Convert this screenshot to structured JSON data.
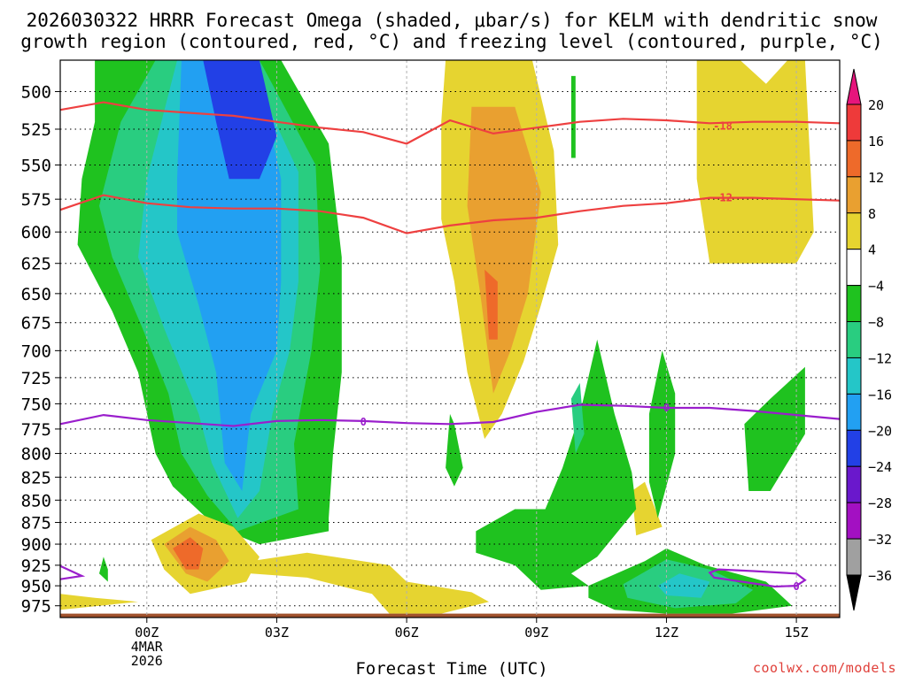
{
  "chart_data": {
    "type": "heatmap",
    "title_line1": "2026030322 HRRR Forecast Omega (shaded, μbar/s) for KELM with dendritic snow",
    "title_line2": "growth region (contoured, red, °C) and freezing level (contoured, purple, °C)",
    "xlabel": "Forecast Time (UTC)",
    "ylabel": "",
    "y_axis": {
      "scale": "pressure (inverted, log-like)",
      "ylim": [
        990,
        480
      ],
      "ticks": [
        500,
        525,
        550,
        575,
        600,
        625,
        650,
        675,
        700,
        725,
        750,
        775,
        800,
        825,
        850,
        875,
        900,
        925,
        950,
        975
      ]
    },
    "x_axis": {
      "xlim": [
        -2,
        16
      ],
      "ticks": [
        {
          "hour": 0,
          "label": "00Z",
          "sub1": "4MAR",
          "sub2": "2026"
        },
        {
          "hour": 3,
          "label": "03Z",
          "sub1": "",
          "sub2": ""
        },
        {
          "hour": 6,
          "label": "06Z",
          "sub1": "",
          "sub2": ""
        },
        {
          "hour": 9,
          "label": "09Z",
          "sub1": "",
          "sub2": ""
        },
        {
          "hour": 12,
          "label": "12Z",
          "sub1": "",
          "sub2": ""
        },
        {
          "hour": 15,
          "label": "15Z",
          "sub1": "",
          "sub2": ""
        }
      ]
    },
    "grid": true,
    "colorbar": {
      "labels": [
        "20",
        "16",
        "12",
        "8",
        "4",
        "−4",
        "−8",
        "−12",
        "−16",
        "−20",
        "−24",
        "−28",
        "−32",
        "−36"
      ],
      "bins": [
        {
          "from": 16,
          "to": 20,
          "color": "#ee3a3a"
        },
        {
          "from": 12,
          "to": 16,
          "color": "#ee6a2a"
        },
        {
          "from": 8,
          "to": 12,
          "color": "#e9a030"
        },
        {
          "from": 4,
          "to": 8,
          "color": "#e6d430"
        },
        {
          "from": -4,
          "to": 4,
          "color": "#ffffff"
        },
        {
          "from": -8,
          "to": -4,
          "color": "#1fc21f"
        },
        {
          "from": -12,
          "to": -8,
          "color": "#29cd80"
        },
        {
          "from": -16,
          "to": -12,
          "color": "#24c6c8"
        },
        {
          "from": -20,
          "to": -16,
          "color": "#22a0f2"
        },
        {
          "from": -24,
          "to": -20,
          "color": "#2240e6"
        },
        {
          "from": -28,
          "to": -24,
          "color": "#6a18cc"
        },
        {
          "from": -32,
          "to": -28,
          "color": "#a310c2"
        },
        {
          "from": -36,
          "to": -32,
          "color": "#a0a0a0"
        }
      ],
      "top_arrow_color": "#e6157c",
      "bottom_arrow_color": "#000000"
    },
    "contours": [
      {
        "name": "-18",
        "label": "-18",
        "color": "#ee4040",
        "label_at": [
          13.3,
          523
        ],
        "points": [
          [
            -2,
            512
          ],
          [
            -1,
            507
          ],
          [
            0,
            512
          ],
          [
            1,
            514
          ],
          [
            2,
            516
          ],
          [
            3,
            520
          ],
          [
            4,
            524
          ],
          [
            5,
            527
          ],
          [
            6,
            535
          ],
          [
            7,
            519
          ],
          [
            8,
            528
          ],
          [
            9,
            524
          ],
          [
            10,
            520
          ],
          [
            11,
            518
          ],
          [
            12,
            519
          ],
          [
            13,
            521
          ],
          [
            14,
            520
          ],
          [
            15,
            520
          ],
          [
            16,
            521
          ]
        ]
      },
      {
        "name": "-12",
        "label": "-12",
        "color": "#ee4040",
        "label_at": [
          13.3,
          574
        ],
        "points": [
          [
            -2,
            583
          ],
          [
            -1,
            572
          ],
          [
            0,
            578
          ],
          [
            1,
            581
          ],
          [
            2,
            582
          ],
          [
            3,
            582
          ],
          [
            4,
            584
          ],
          [
            5,
            589
          ],
          [
            6,
            601
          ],
          [
            7,
            595
          ],
          [
            8,
            591
          ],
          [
            9,
            589
          ],
          [
            10,
            584
          ],
          [
            11,
            580
          ],
          [
            12,
            578
          ],
          [
            13,
            574
          ],
          [
            14,
            574
          ],
          [
            15,
            575
          ],
          [
            16,
            576
          ]
        ]
      },
      {
        "name": "0",
        "label": "0",
        "color": "#9a1ecc",
        "label_at": [
          5,
          768
        ],
        "points": [
          [
            -2,
            770
          ],
          [
            -1,
            761
          ],
          [
            0,
            766
          ],
          [
            1,
            769
          ],
          [
            2,
            772
          ],
          [
            3,
            767
          ],
          [
            4,
            766
          ],
          [
            5,
            767
          ],
          [
            6,
            769
          ],
          [
            7,
            770
          ],
          [
            8,
            768
          ],
          [
            9,
            758
          ],
          [
            10,
            751
          ],
          [
            11,
            752
          ],
          [
            12,
            754
          ],
          [
            13,
            754
          ],
          [
            14,
            757
          ],
          [
            15,
            761
          ],
          [
            16,
            765
          ]
        ]
      },
      {
        "name": "0-low",
        "label": "0",
        "color": "#9a1ecc",
        "label_at": [
          15,
          951
        ],
        "points": [
          [
            -2,
            926
          ],
          [
            -1.5,
            938
          ],
          [
            -2,
            942
          ]
        ]
      },
      {
        "name": "0-box",
        "label": "0",
        "color": "#9a1ecc",
        "label_at": [
          15,
          950
        ],
        "points": [
          [
            13,
            934
          ],
          [
            13.2,
            930
          ],
          [
            14,
            932
          ],
          [
            15,
            935
          ],
          [
            15.2,
            943
          ],
          [
            15,
            950
          ],
          [
            14.5,
            951
          ],
          [
            13.1,
            940
          ]
        ]
      }
    ],
    "annotations": [
      "-18",
      "-12",
      "0"
    ]
  },
  "credit": "coolwx.com/models"
}
